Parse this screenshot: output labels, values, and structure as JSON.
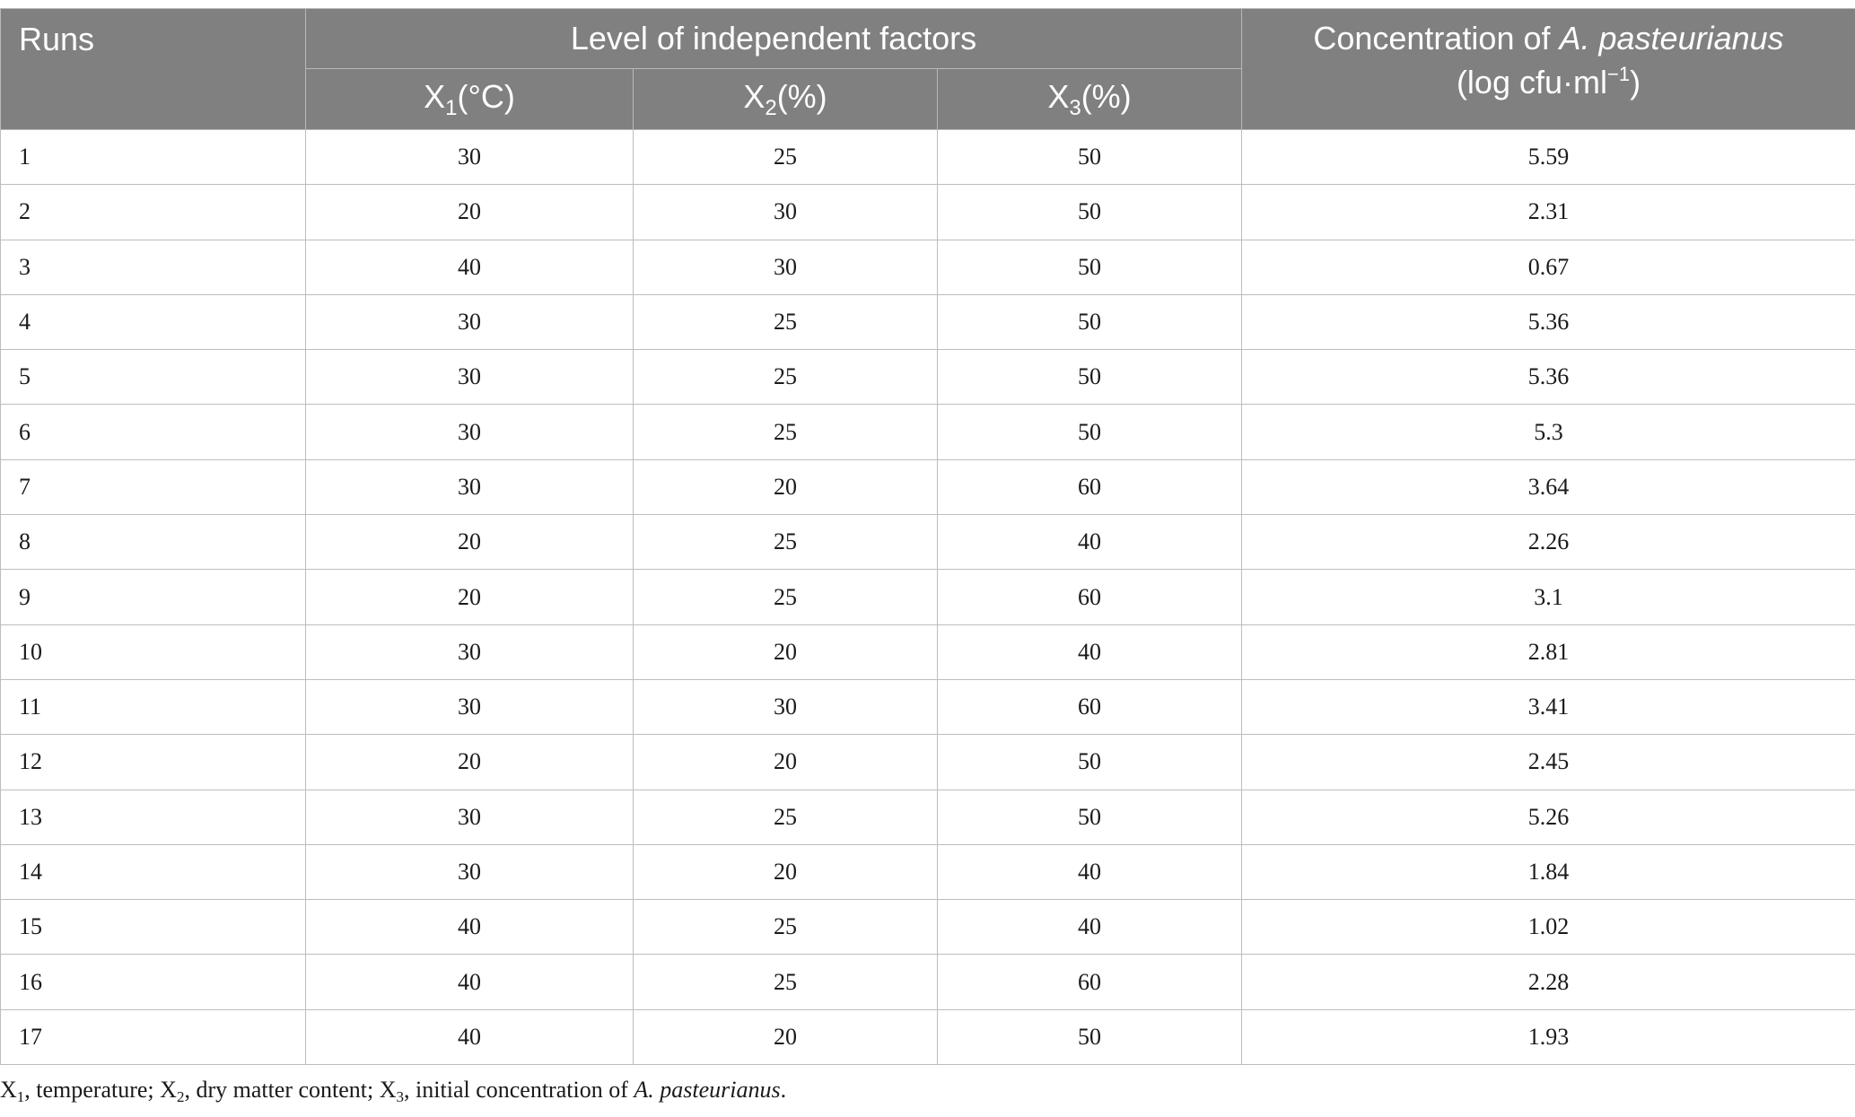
{
  "table": {
    "headers": {
      "runs": "Runs",
      "group": "Level of independent factors",
      "x1_base": "X",
      "x1_sub": "1",
      "x1_unit": "(°C)",
      "x2_base": "X",
      "x2_sub": "2",
      "x2_unit": "(%)",
      "x3_base": "X",
      "x3_sub": "3",
      "x3_unit": "(%)",
      "conc_prefix": "Concentration of ",
      "conc_species": "A. pasteurianus",
      "conc_unit_start": "(log cfu·ml",
      "conc_unit_exp": "−1",
      "conc_unit_end": ")"
    },
    "rows": [
      {
        "run": "1",
        "x1": "30",
        "x2": "25",
        "x3": "50",
        "conc": "5.59"
      },
      {
        "run": "2",
        "x1": "20",
        "x2": "30",
        "x3": "50",
        "conc": "2.31"
      },
      {
        "run": "3",
        "x1": "40",
        "x2": "30",
        "x3": "50",
        "conc": "0.67"
      },
      {
        "run": "4",
        "x1": "30",
        "x2": "25",
        "x3": "50",
        "conc": "5.36"
      },
      {
        "run": "5",
        "x1": "30",
        "x2": "25",
        "x3": "50",
        "conc": "5.36"
      },
      {
        "run": "6",
        "x1": "30",
        "x2": "25",
        "x3": "50",
        "conc": "5.3"
      },
      {
        "run": "7",
        "x1": "30",
        "x2": "20",
        "x3": "60",
        "conc": "3.64"
      },
      {
        "run": "8",
        "x1": "20",
        "x2": "25",
        "x3": "40",
        "conc": "2.26"
      },
      {
        "run": "9",
        "x1": "20",
        "x2": "25",
        "x3": "60",
        "conc": "3.1"
      },
      {
        "run": "10",
        "x1": "30",
        "x2": "20",
        "x3": "40",
        "conc": "2.81"
      },
      {
        "run": "11",
        "x1": "30",
        "x2": "30",
        "x3": "60",
        "conc": "3.41"
      },
      {
        "run": "12",
        "x1": "20",
        "x2": "20",
        "x3": "50",
        "conc": "2.45"
      },
      {
        "run": "13",
        "x1": "30",
        "x2": "25",
        "x3": "50",
        "conc": "5.26"
      },
      {
        "run": "14",
        "x1": "30",
        "x2": "20",
        "x3": "40",
        "conc": "1.84"
      },
      {
        "run": "15",
        "x1": "40",
        "x2": "25",
        "x3": "40",
        "conc": "1.02"
      },
      {
        "run": "16",
        "x1": "40",
        "x2": "25",
        "x3": "60",
        "conc": "2.28"
      },
      {
        "run": "17",
        "x1": "40",
        "x2": "20",
        "x3": "50",
        "conc": "1.93"
      }
    ]
  },
  "footnote": {
    "x1_base": "X",
    "x1_sub": "1",
    "x1_text": ", temperature; ",
    "x2_base": "X",
    "x2_sub": "2",
    "x2_text": ", dry matter content; ",
    "x3_base": "X",
    "x3_sub": "3",
    "x3_text": ", initial concentration of ",
    "species": "A. pasteurianus",
    "end": "."
  },
  "colors": {
    "header_bg": "#7f807f",
    "header_text": "#ffffff",
    "grid_line": "#bdbdbd"
  }
}
